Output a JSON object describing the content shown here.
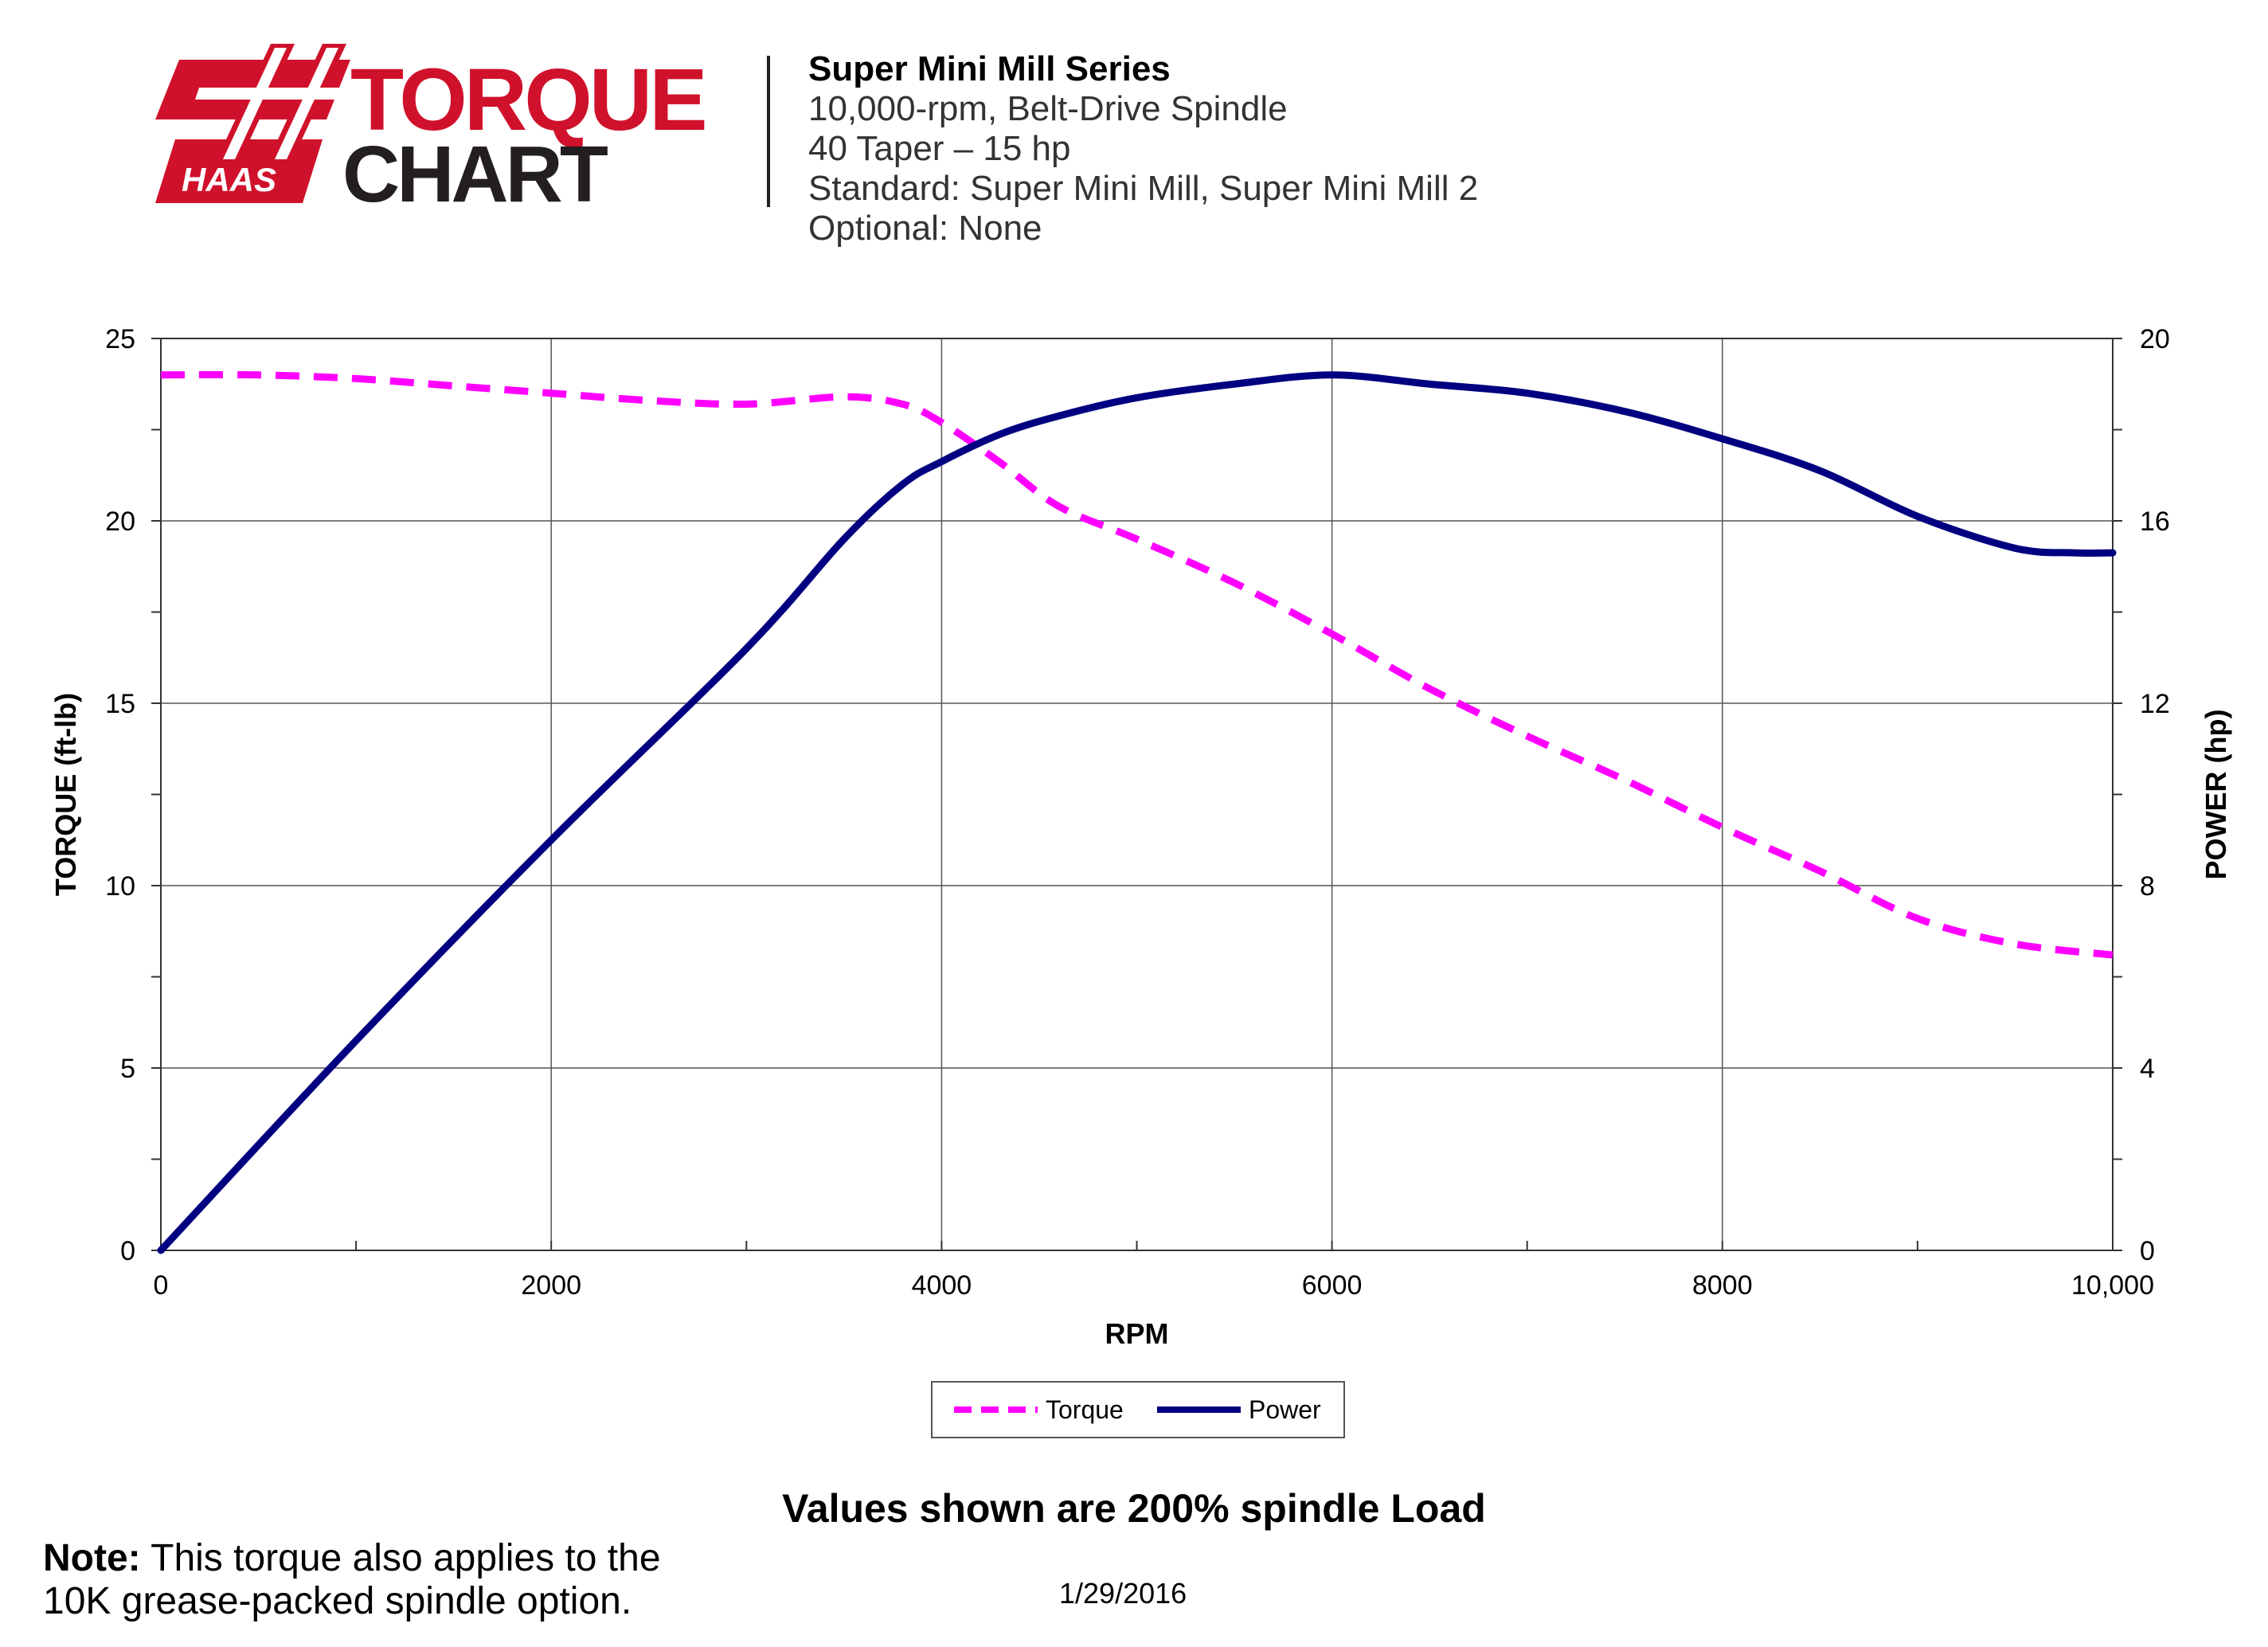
{
  "header": {
    "logo_text_top": "TORQUE",
    "logo_text_bottom": "CHART",
    "logo_brand": "HAAS",
    "title": "Super Mini Mill Series",
    "line1": "10,000-rpm, Belt-Drive Spindle",
    "line2": "40 Taper – 15 hp",
    "line3": "Standard: Super Mini Mill, Super Mini Mill 2",
    "line4": "Optional: None"
  },
  "colors": {
    "torque": "#ff00ff",
    "power": "#000080",
    "brand_red": "#d0112b",
    "brand_dark": "#231f20"
  },
  "chart_data": {
    "type": "line",
    "xlabel": "RPM",
    "ylabel": "TORQUE (ft-lb)",
    "y2label": "POWER (hp)",
    "xlim": [
      0,
      10000
    ],
    "ylim": [
      0,
      25
    ],
    "y2lim": [
      0,
      20
    ],
    "x_ticks": [
      "0",
      "2000",
      "4000",
      "6000",
      "8000",
      "10,000"
    ],
    "y_ticks": [
      "0",
      "5",
      "10",
      "15",
      "20",
      "25"
    ],
    "y2_ticks": [
      "0",
      "4",
      "8",
      "12",
      "16",
      "20"
    ],
    "grid": true,
    "legend_position": "bottom-center",
    "series": [
      {
        "name": "Torque",
        "axis": "left",
        "style": "dashed",
        "x": [
          0,
          500,
          1000,
          1500,
          2000,
          2500,
          3000,
          3500,
          3800,
          4000,
          4300,
          4600,
          5000,
          5500,
          6000,
          6500,
          7000,
          7500,
          8000,
          8500,
          9000,
          9500,
          10000
        ],
        "values": [
          24.0,
          24.0,
          23.9,
          23.7,
          23.5,
          23.3,
          23.2,
          23.4,
          23.2,
          22.7,
          21.6,
          20.4,
          19.5,
          18.3,
          16.9,
          15.4,
          14.1,
          12.9,
          11.6,
          10.4,
          9.1,
          8.4,
          8.1
        ]
      },
      {
        "name": "Power",
        "axis": "right",
        "style": "solid",
        "x": [
          0,
          1000,
          2000,
          3000,
          3500,
          3800,
          4000,
          4300,
          4600,
          5000,
          5500,
          6000,
          6500,
          7000,
          7500,
          8000,
          8500,
          9000,
          9500,
          9800,
          10000
        ],
        "values": [
          0,
          4.6,
          9.0,
          13.2,
          15.6,
          16.8,
          17.3,
          17.9,
          18.3,
          18.7,
          19.0,
          19.2,
          19.0,
          18.8,
          18.4,
          17.8,
          17.1,
          16.1,
          15.4,
          15.3,
          15.3
        ]
      }
    ]
  },
  "footer": {
    "load_note": "Values shown are 200% spindle Load",
    "note_label": "Note:",
    "note_line1": "This torque also applies to the",
    "note_line2": "10K grease-packed spindle option.",
    "date": "1/29/2016"
  }
}
